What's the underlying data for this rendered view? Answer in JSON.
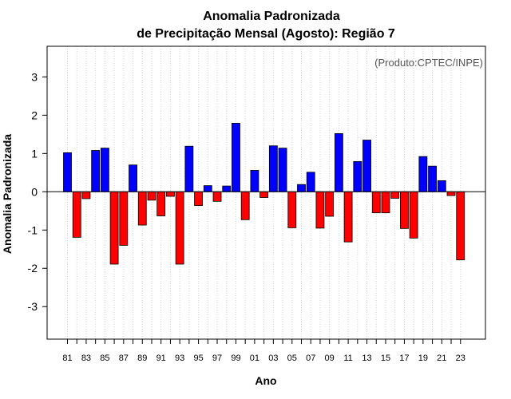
{
  "chart_data": {
    "type": "bar",
    "title_line1": "Anomalia Padronizada",
    "title_line2": "de Precipitação Mensal (Agosto): Região 7",
    "xlabel": "Ano",
    "ylabel": "Anomalia Padronizada",
    "annotation": "(Produto:CPTEC/INPE)",
    "ylim": [
      -3.85,
      3.8
    ],
    "yticks": [
      "-3",
      "-2",
      "-1",
      "0",
      "1",
      "2",
      "3"
    ],
    "xtick_labels": [
      "81",
      "83",
      "85",
      "87",
      "89",
      "91",
      "93",
      "95",
      "97",
      "99",
      "01",
      "03",
      "05",
      "07",
      "09",
      "11",
      "13",
      "15",
      "17",
      "19",
      "21",
      "23"
    ],
    "positive_color": "#0000ff",
    "negative_color": "#ff0000",
    "grid": "vertical dotted",
    "categories": [
      "1981",
      "1982",
      "1983",
      "1984",
      "1985",
      "1986",
      "1987",
      "1988",
      "1989",
      "1990",
      "1991",
      "1992",
      "1993",
      "1994",
      "1995",
      "1996",
      "1997",
      "1998",
      "1999",
      "2000",
      "2001",
      "2002",
      "2003",
      "2004",
      "2005",
      "2006",
      "2007",
      "2008",
      "2009",
      "2010",
      "2011",
      "2012",
      "2013",
      "2014",
      "2015",
      "2016",
      "2017",
      "2018",
      "2019",
      "2020",
      "2021",
      "2022",
      "2023"
    ],
    "values": [
      1.02,
      -1.19,
      -0.18,
      1.08,
      1.14,
      -1.89,
      -1.4,
      0.7,
      -0.87,
      -0.22,
      -0.63,
      -0.12,
      -1.89,
      1.19,
      -0.36,
      0.16,
      -0.25,
      0.15,
      1.79,
      -0.73,
      0.56,
      -0.15,
      1.2,
      1.14,
      -0.94,
      0.19,
      0.51,
      -0.95,
      -0.64,
      1.52,
      -1.31,
      0.79,
      1.35,
      -0.55,
      -0.55,
      -0.17,
      -0.96,
      -1.21,
      0.92,
      0.67,
      0.29,
      -0.1,
      -1.78
    ]
  }
}
